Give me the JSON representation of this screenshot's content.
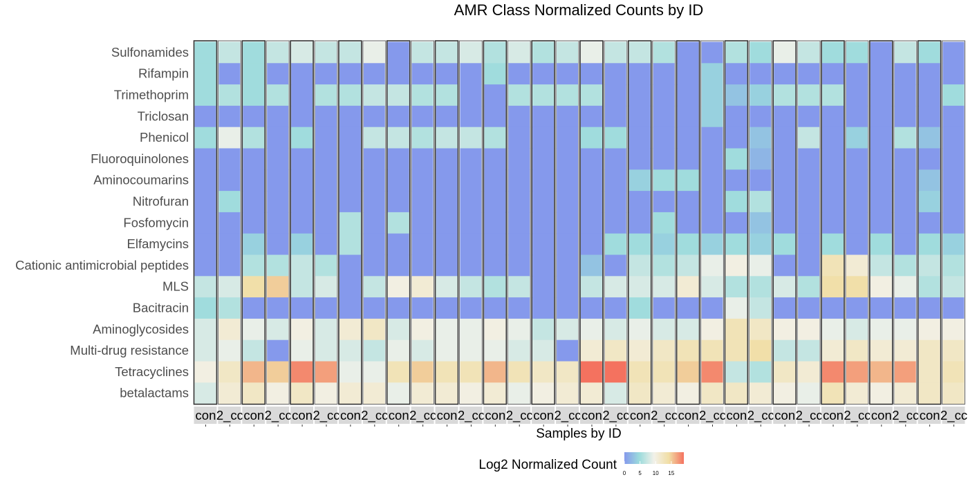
{
  "chart_data": {
    "type": "heatmap",
    "title": "AMR Class Normalized Counts by ID",
    "xlabel": "Samples by ID",
    "ylabel": "",
    "legend": {
      "title": "Log2 Normalized Count",
      "ticks": [
        0,
        5,
        10,
        15
      ],
      "range": [
        0,
        19
      ],
      "colors": [
        "#8599ec",
        "#9bdbdc",
        "#f2f1e9",
        "#f1dea5",
        "#f4725f"
      ],
      "placement": "bottom"
    },
    "x_tick_labels": [
      "con",
      "2_cc",
      "con",
      "2_cc",
      "con",
      "2_cc",
      "con",
      "2_cc",
      "con",
      "2_cc",
      "con",
      "2_cc",
      "con",
      "2_cc",
      "con",
      "2_cc",
      "con",
      "2_cc",
      "con",
      "2_cc",
      "con",
      "2_cc",
      "con",
      "2_cc",
      "con",
      "2_cc",
      "con",
      "2_cc",
      "con",
      "2_cc",
      "con",
      "2_cc"
    ],
    "rows": [
      "Sulfonamides",
      "Rifampin",
      "Trimethoprim",
      "Triclosan",
      "Phenicol",
      "Fluoroquinolones",
      "Aminocoumarins",
      "Nitrofuran",
      "Fosfomycin",
      "Elfamycins",
      "Cationic antimicrobial peptides",
      "MLS",
      "Bacitracin",
      "Aminoglycosides",
      "Multi-drug resistance",
      "Tetracyclines",
      "betalactams"
    ],
    "values": [
      [
        5,
        7,
        5,
        7,
        8,
        7,
        7,
        9,
        0,
        7,
        7,
        8,
        6,
        8,
        6,
        7,
        9,
        7,
        7,
        6,
        0,
        0,
        6,
        5,
        9,
        7,
        5,
        5,
        0,
        7,
        5,
        0
      ],
      [
        5,
        0,
        5,
        0,
        0,
        0,
        0,
        0,
        0,
        0,
        0,
        0,
        5,
        0,
        0,
        0,
        0,
        0,
        0,
        0,
        0,
        4,
        0,
        0,
        0,
        0,
        0,
        0,
        0,
        0,
        0,
        0
      ],
      [
        5,
        6,
        5,
        6,
        0,
        6,
        6,
        7,
        7,
        6,
        6,
        0,
        0,
        6,
        6,
        6,
        6,
        0,
        0,
        0,
        0,
        4,
        3,
        4,
        6,
        6,
        6,
        0,
        0,
        0,
        0,
        5
      ],
      [
        0,
        0,
        0,
        0,
        0,
        0,
        0,
        0,
        0,
        0,
        0,
        0,
        0,
        0,
        0,
        0,
        0,
        0,
        0,
        0,
        0,
        4,
        0,
        0,
        0,
        0,
        0,
        0,
        0,
        0,
        0,
        0
      ],
      [
        5,
        9,
        6,
        0,
        5,
        0,
        0,
        7,
        7,
        6,
        7,
        7,
        6,
        0,
        0,
        0,
        5,
        5,
        0,
        0,
        0,
        0,
        0,
        3,
        0,
        7,
        0,
        4,
        0,
        6,
        3,
        0
      ],
      [
        0,
        0,
        0,
        0,
        0,
        0,
        0,
        0,
        0,
        0,
        0,
        0,
        0,
        0,
        0,
        0,
        0,
        0,
        0,
        0,
        0,
        0,
        5,
        2,
        0,
        0,
        0,
        0,
        0,
        0,
        0,
        0
      ],
      [
        0,
        0,
        0,
        0,
        0,
        0,
        0,
        0,
        0,
        0,
        0,
        0,
        0,
        0,
        0,
        0,
        0,
        0,
        4,
        5,
        5,
        0,
        0,
        0,
        0,
        0,
        0,
        0,
        0,
        0,
        3,
        0
      ],
      [
        0,
        5,
        0,
        0,
        0,
        0,
        0,
        0,
        0,
        0,
        0,
        0,
        0,
        0,
        0,
        0,
        0,
        0,
        0,
        0,
        0,
        0,
        5,
        6,
        0,
        0,
        0,
        0,
        0,
        0,
        4,
        0
      ],
      [
        0,
        0,
        0,
        0,
        0,
        0,
        6,
        0,
        6,
        0,
        0,
        0,
        0,
        0,
        0,
        0,
        0,
        0,
        0,
        5,
        0,
        0,
        0,
        3,
        0,
        0,
        0,
        0,
        0,
        0,
        0,
        0
      ],
      [
        0,
        0,
        4,
        0,
        4,
        0,
        6,
        0,
        0,
        0,
        0,
        0,
        0,
        0,
        0,
        0,
        0,
        5,
        5,
        4,
        5,
        4,
        5,
        4,
        5,
        0,
        5,
        0,
        5,
        0,
        5,
        4
      ],
      [
        0,
        0,
        6,
        6,
        7,
        6,
        0,
        0,
        0,
        0,
        0,
        0,
        0,
        0,
        0,
        0,
        3,
        0,
        7,
        6,
        7,
        9,
        10,
        9,
        0,
        0,
        13,
        11,
        7,
        6,
        7,
        6
      ],
      [
        7,
        8,
        14,
        15,
        7,
        8,
        0,
        7,
        10,
        11,
        8,
        7,
        6,
        7,
        0,
        0,
        7,
        8,
        8,
        8,
        11,
        8,
        6,
        6,
        8,
        6,
        14,
        14,
        10,
        9,
        6,
        7
      ],
      [
        5,
        6,
        0,
        0,
        0,
        0,
        0,
        0,
        0,
        0,
        0,
        0,
        0,
        0,
        0,
        0,
        0,
        0,
        5,
        0,
        0,
        0,
        9,
        7,
        0,
        0,
        0,
        0,
        0,
        0,
        0,
        0
      ],
      [
        8,
        11,
        9,
        8,
        10,
        8,
        11,
        12,
        8,
        10,
        9,
        9,
        10,
        9,
        7,
        8,
        9,
        8,
        9,
        8,
        8,
        10,
        13,
        12,
        10,
        10,
        9,
        8,
        9,
        9,
        10,
        10
      ],
      [
        8,
        9,
        7,
        0,
        9,
        8,
        8,
        7,
        9,
        8,
        9,
        9,
        9,
        8,
        8,
        0,
        11,
        12,
        11,
        12,
        13,
        13,
        13,
        14,
        7,
        7,
        11,
        12,
        11,
        11,
        12,
        12
      ],
      [
        10,
        12,
        16,
        15,
        18,
        17,
        9,
        9,
        13,
        15,
        13,
        13,
        16,
        13,
        12,
        12,
        19,
        19,
        13,
        13,
        15,
        18,
        7,
        6,
        12,
        11,
        18,
        17,
        16,
        17,
        12,
        13
      ],
      [
        8,
        11,
        12,
        10,
        12,
        10,
        11,
        11,
        9,
        11,
        11,
        10,
        11,
        9,
        10,
        11,
        11,
        8,
        12,
        11,
        10,
        12,
        12,
        11,
        10,
        9,
        13,
        11,
        10,
        11,
        12,
        12
      ]
    ]
  }
}
